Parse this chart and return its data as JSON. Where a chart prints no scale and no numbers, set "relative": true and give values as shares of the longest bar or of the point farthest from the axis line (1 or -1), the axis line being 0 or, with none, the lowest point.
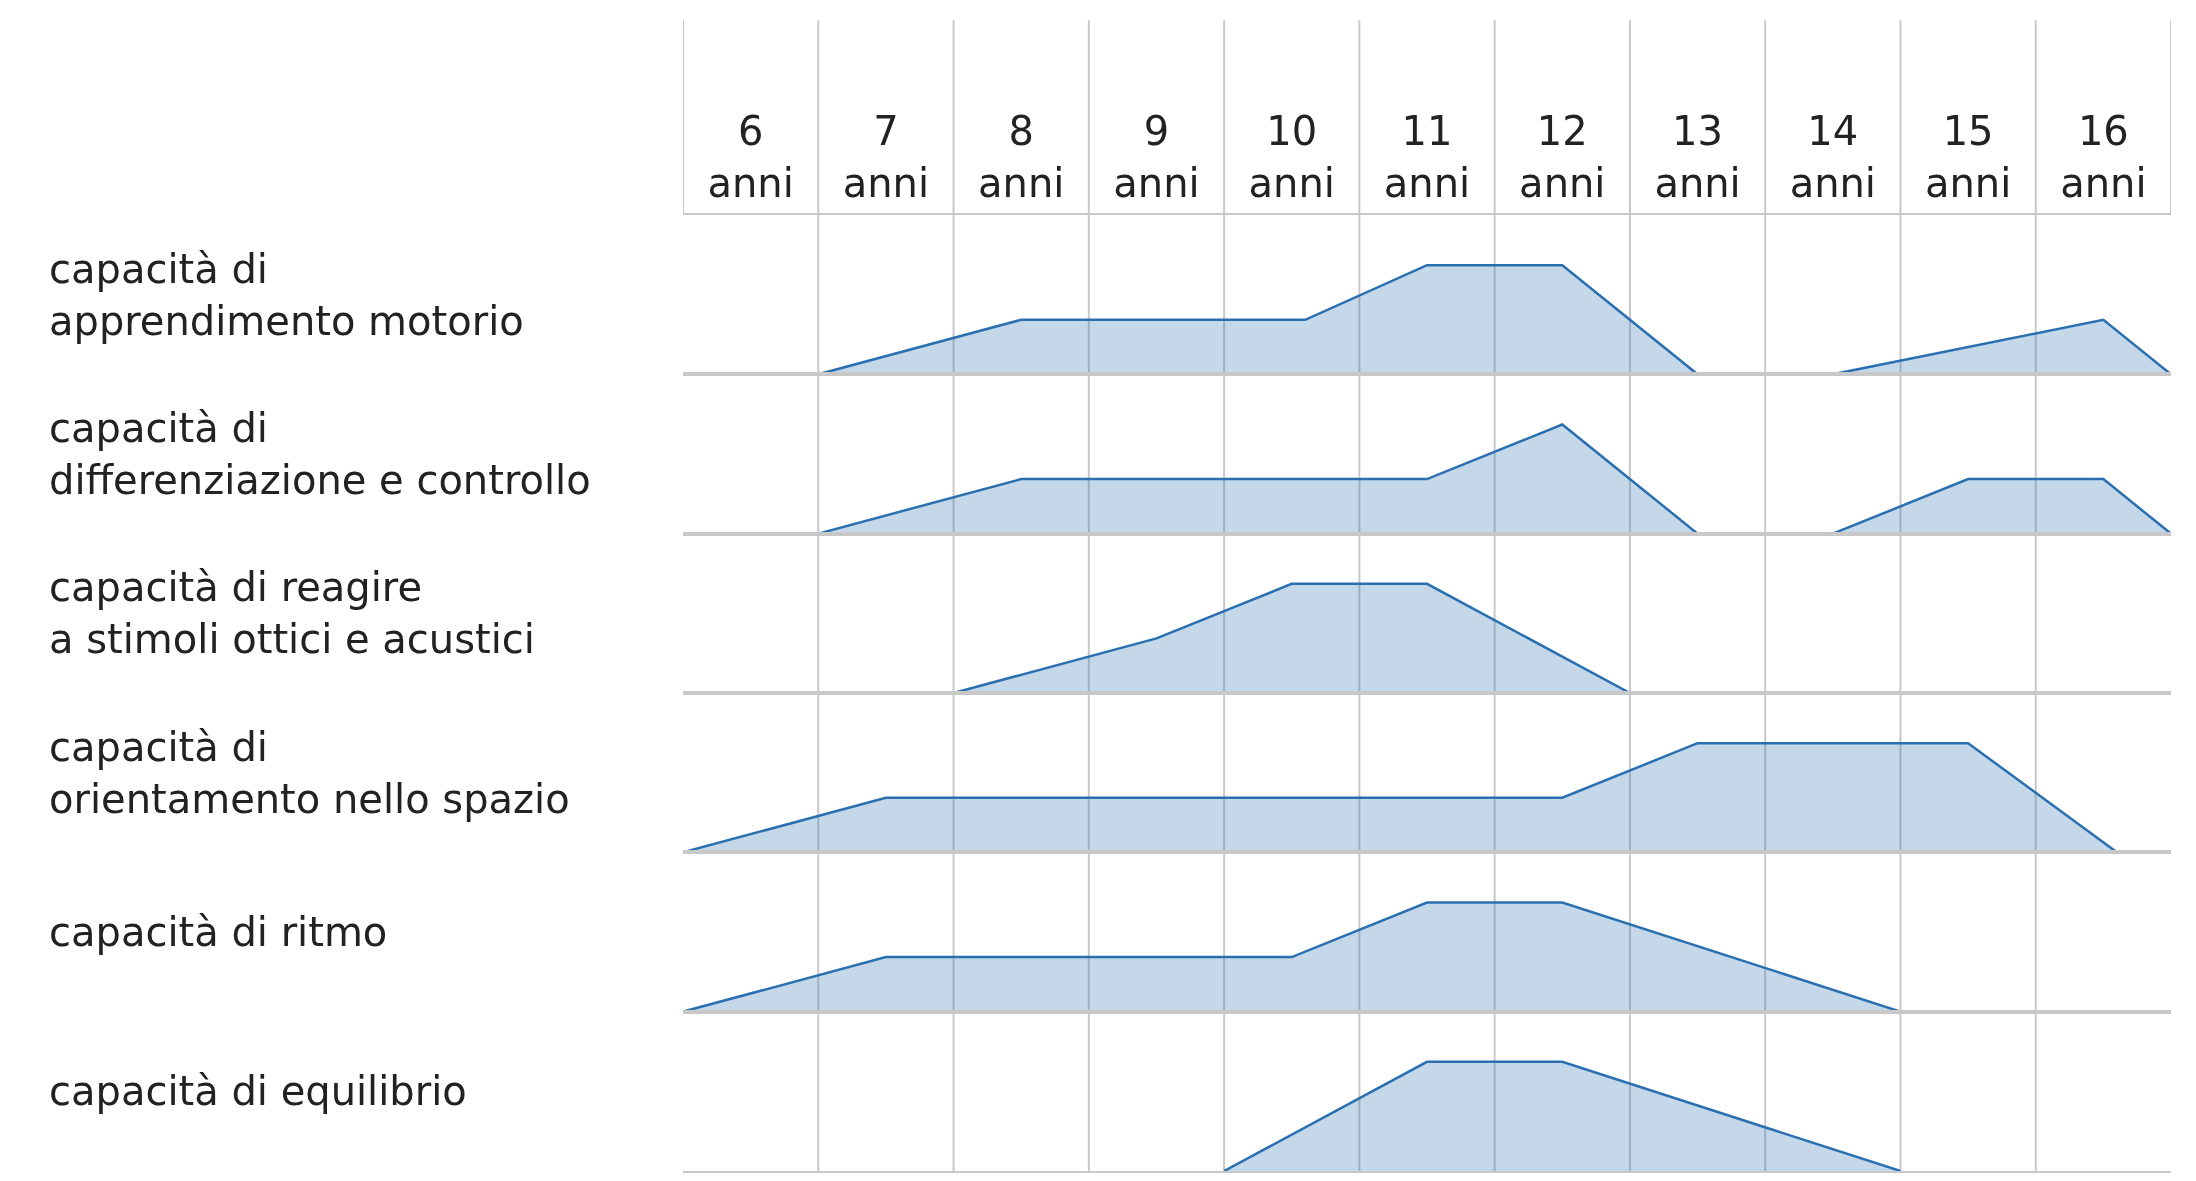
{
  "chart_data": [
    {
      "type": "area",
      "ylabel": "capacità di\napprendimento motorio",
      "relative": true,
      "color": "#2a6fb0",
      "x": [
        6.5,
        8,
        10.1,
        11,
        12,
        13,
        14,
        16,
        16.5
      ],
      "values": [
        0,
        0.5,
        0.5,
        1,
        1,
        0,
        0,
        0.5,
        0
      ],
      "xlim": [
        5.5,
        16.5
      ],
      "grid": "x",
      "tick_labels": "x",
      "xticks": [
        {
          "value": 6,
          "label": "6\nanni"
        },
        {
          "value": 7,
          "label": "7\nanni"
        },
        {
          "value": 8,
          "label": "8\nanni"
        },
        {
          "value": 9,
          "label": "9\nanni"
        },
        {
          "value": 10,
          "label": "10\nanni"
        },
        {
          "value": 11,
          "label": "11\nanni"
        },
        {
          "value": 12,
          "label": "12\nanni"
        },
        {
          "value": 13,
          "label": "13\nanni"
        },
        {
          "value": 14,
          "label": "14\nanni"
        },
        {
          "value": 15,
          "label": "15\nanni"
        },
        {
          "value": 16,
          "label": "16\nanni"
        },
        {
          "value": 6.5,
          "label": null
        },
        {
          "value": 7.5,
          "label": null
        },
        {
          "value": 8.5,
          "label": null
        },
        {
          "value": 9.5,
          "label": null
        },
        {
          "value": 10.5,
          "label": null
        },
        {
          "value": 11.5,
          "label": null
        },
        {
          "value": 12.5,
          "label": null
        },
        {
          "value": 13.5,
          "label": null
        },
        {
          "value": 14.5,
          "label": null
        },
        {
          "value": 15.5,
          "label": null
        }
      ]
    },
    {
      "type": "area",
      "ylabel": "capacità di\ndifferenziazione e controllo",
      "relative": true,
      "color": "#2a6fb0",
      "x": [
        6.5,
        8,
        11,
        12,
        13,
        14,
        15,
        16,
        16.5
      ],
      "values": [
        0,
        0.5,
        0.5,
        1,
        0,
        0,
        0.5,
        0.5,
        0
      ],
      "xlim": [
        5.5,
        16.5
      ],
      "grid": "x",
      "tick_labels": false,
      "xticks": [
        {
          "value": 6.5,
          "label": null
        },
        {
          "value": 7.5,
          "label": null
        },
        {
          "value": 8.5,
          "label": null
        },
        {
          "value": 9.5,
          "label": null
        },
        {
          "value": 10.5,
          "label": null
        },
        {
          "value": 11.5,
          "label": null
        },
        {
          "value": 12.5,
          "label": null
        },
        {
          "value": 13.5,
          "label": null
        },
        {
          "value": 14.5,
          "label": null
        },
        {
          "value": 15.5,
          "label": null
        }
      ]
    },
    {
      "type": "area",
      "ylabel": "capacità di reagire\na stimoli ottici e acustici",
      "relative": true,
      "color": "#2a6fb0",
      "x": [
        7.5,
        9,
        10,
        11,
        12.5
      ],
      "values": [
        0,
        0.5,
        1,
        1,
        0
      ],
      "xlim": [
        5.5,
        16.5
      ],
      "grid": "x",
      "tick_labels": false,
      "xticks": [
        {
          "value": 6.5,
          "label": null
        },
        {
          "value": 7.5,
          "label": null
        },
        {
          "value": 8.5,
          "label": null
        },
        {
          "value": 9.5,
          "label": null
        },
        {
          "value": 10.5,
          "label": null
        },
        {
          "value": 11.5,
          "label": null
        },
        {
          "value": 12.5,
          "label": null
        },
        {
          "value": 13.5,
          "label": null
        },
        {
          "value": 14.5,
          "label": null
        },
        {
          "value": 15.5,
          "label": null
        }
      ]
    },
    {
      "type": "area",
      "ylabel": "capacità di\norientamento nello spazio",
      "relative": true,
      "color": "#2a6fb0",
      "x": [
        5.5,
        7,
        12,
        13,
        15,
        16.1
      ],
      "values": [
        0,
        0.5,
        0.5,
        1,
        1,
        0
      ],
      "xlim": [
        5.5,
        16.5
      ],
      "grid": "x",
      "tick_labels": false,
      "xticks": [
        {
          "value": 6.5,
          "label": null
        },
        {
          "value": 7.5,
          "label": null
        },
        {
          "value": 8.5,
          "label": null
        },
        {
          "value": 9.5,
          "label": null
        },
        {
          "value": 10.5,
          "label": null
        },
        {
          "value": 11.5,
          "label": null
        },
        {
          "value": 12.5,
          "label": null
        },
        {
          "value": 13.5,
          "label": null
        },
        {
          "value": 14.5,
          "label": null
        },
        {
          "value": 15.5,
          "label": null
        }
      ]
    },
    {
      "type": "area",
      "ylabel": "capacità di ritmo",
      "relative": true,
      "color": "#2a6fb0",
      "x": [
        5.5,
        7,
        10,
        11,
        12,
        14.5
      ],
      "values": [
        0,
        0.5,
        0.5,
        1,
        1,
        0
      ],
      "xlim": [
        5.5,
        16.5
      ],
      "grid": "x",
      "tick_labels": false,
      "xticks": [
        {
          "value": 6.5,
          "label": null
        },
        {
          "value": 7.5,
          "label": null
        },
        {
          "value": 8.5,
          "label": null
        },
        {
          "value": 9.5,
          "label": null
        },
        {
          "value": 10.5,
          "label": null
        },
        {
          "value": 11.5,
          "label": null
        },
        {
          "value": 12.5,
          "label": null
        },
        {
          "value": 13.5,
          "label": null
        },
        {
          "value": 14.5,
          "label": null
        },
        {
          "value": 15.5,
          "label": null
        }
      ]
    },
    {
      "type": "area",
      "ylabel": "capacità di equilibrio",
      "relative": true,
      "color": "#2a6fb0",
      "x": [
        9.5,
        11,
        12,
        14.5
      ],
      "values": [
        0,
        1,
        1,
        0
      ],
      "xlim": [
        5.5,
        16.5
      ],
      "grid": "x",
      "tick_labels": false,
      "xticks": [
        {
          "value": 6.5,
          "label": null
        },
        {
          "value": 7.5,
          "label": null
        },
        {
          "value": 8.5,
          "label": null
        },
        {
          "value": 9.5,
          "label": null
        },
        {
          "value": 10.5,
          "label": null
        },
        {
          "value": 11.5,
          "label": null
        },
        {
          "value": 12.5,
          "label": null
        },
        {
          "value": 13.5,
          "label": null
        },
        {
          "value": 14.5,
          "label": null
        },
        {
          "value": 15.5,
          "label": null
        }
      ]
    }
  ]
}
